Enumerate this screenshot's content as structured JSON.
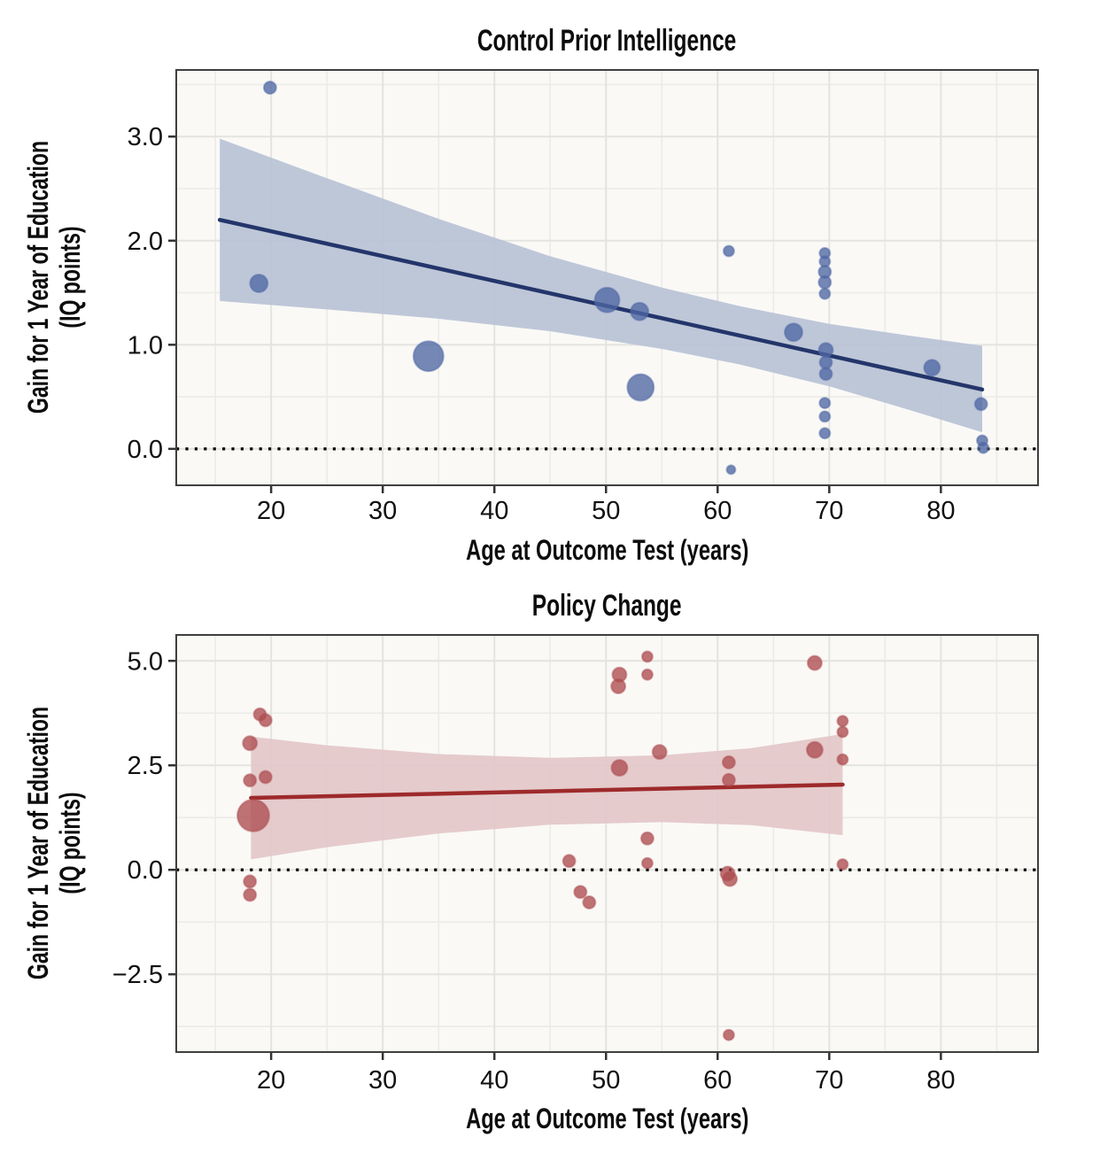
{
  "style": {
    "background": "#ffffff",
    "panel_bg": "#faf9f6",
    "grid_major": "#e3e3e0",
    "grid_minor": "#ebebe8",
    "panel_border": "#3f3f3f",
    "tick_mark": "#333333",
    "tick_text": "#111111",
    "zero_line": "#000000"
  },
  "chart_data": [
    {
      "type": "scatter",
      "title": "Control Prior Intelligence",
      "xlabel": "Age at Outcome Test (years)",
      "ylabel_line1": "Gain for 1 Year of Education",
      "ylabel_line2": "(IQ points)",
      "xlim": [
        11.5,
        88.7
      ],
      "ylim": [
        -0.35,
        3.64
      ],
      "x_tick_values": [
        20,
        30,
        40,
        50,
        60,
        70,
        80
      ],
      "x_tick_labels": [
        "20",
        "30",
        "40",
        "50",
        "60",
        "70",
        "80"
      ],
      "x_minor_ticks": [
        15,
        25,
        35,
        45,
        55,
        65,
        75,
        85
      ],
      "y_tick_values": [
        0,
        1,
        2,
        3
      ],
      "y_tick_labels": [
        "0.0",
        "1.0",
        "2.0",
        "3.0"
      ],
      "y_minor_ticks": [
        0.5,
        1.5,
        2.5,
        3.5
      ],
      "zero_line_y": 0,
      "colors": {
        "point": "#4e66a3",
        "line": "#24356b",
        "ribbon": "#b9c3d5"
      },
      "regression": {
        "x": [
          15.4,
          83.7
        ],
        "y": [
          2.2,
          0.57
        ]
      },
      "ribbon": {
        "x": [
          15.4,
          25,
          35,
          45,
          55,
          62,
          70,
          77,
          83.7
        ],
        "upper": [
          2.98,
          2.6,
          2.21,
          1.85,
          1.55,
          1.37,
          1.2,
          1.09,
          0.99
        ],
        "lower": [
          1.42,
          1.34,
          1.25,
          1.13,
          0.96,
          0.81,
          0.6,
          0.38,
          0.16
        ]
      },
      "points": [
        {
          "x": 19.9,
          "y": 3.47,
          "r": 7
        },
        {
          "x": 18.9,
          "y": 1.59,
          "r": 10
        },
        {
          "x": 34.1,
          "y": 0.89,
          "r": 17
        },
        {
          "x": 50.1,
          "y": 1.43,
          "r": 14
        },
        {
          "x": 53.0,
          "y": 1.32,
          "r": 10
        },
        {
          "x": 53.1,
          "y": 0.59,
          "r": 15
        },
        {
          "x": 61.0,
          "y": 1.9,
          "r": 6
        },
        {
          "x": 61.2,
          "y": -0.2,
          "r": 5
        },
        {
          "x": 69.6,
          "y": 1.88,
          "r": 6
        },
        {
          "x": 69.6,
          "y": 1.8,
          "r": 6
        },
        {
          "x": 69.6,
          "y": 1.7,
          "r": 7
        },
        {
          "x": 69.6,
          "y": 1.6,
          "r": 7
        },
        {
          "x": 69.6,
          "y": 1.49,
          "r": 6
        },
        {
          "x": 69.7,
          "y": 0.95,
          "r": 8
        },
        {
          "x": 69.7,
          "y": 0.83,
          "r": 7
        },
        {
          "x": 69.7,
          "y": 0.72,
          "r": 7
        },
        {
          "x": 69.6,
          "y": 0.44,
          "r": 6
        },
        {
          "x": 69.6,
          "y": 0.31,
          "r": 6
        },
        {
          "x": 69.6,
          "y": 0.15,
          "r": 6
        },
        {
          "x": 66.8,
          "y": 1.12,
          "r": 10
        },
        {
          "x": 79.2,
          "y": 0.78,
          "r": 9
        },
        {
          "x": 83.6,
          "y": 0.43,
          "r": 7
        },
        {
          "x": 83.7,
          "y": 0.08,
          "r": 6
        },
        {
          "x": 83.8,
          "y": 0.01,
          "r": 6
        }
      ]
    },
    {
      "type": "scatter",
      "title": "Policy Change",
      "xlabel": "Age at Outcome Test (years)",
      "ylabel_line1": "Gain for 1 Year of Education",
      "ylabel_line2": "(IQ points)",
      "xlim": [
        11.5,
        88.7
      ],
      "ylim": [
        -4.36,
        5.62
      ],
      "x_tick_values": [
        20,
        30,
        40,
        50,
        60,
        70,
        80
      ],
      "x_tick_labels": [
        "20",
        "30",
        "40",
        "50",
        "60",
        "70",
        "80"
      ],
      "x_minor_ticks": [
        15,
        25,
        35,
        45,
        55,
        65,
        75,
        85
      ],
      "y_tick_values": [
        -2.5,
        0,
        2.5,
        5
      ],
      "y_tick_labels": [
        "−2.5",
        "0.0",
        "2.5",
        "5.0"
      ],
      "y_minor_ticks": [
        -3.75,
        -1.25,
        1.25,
        3.75
      ],
      "zero_line_y": 0,
      "colors": {
        "point": "#ad4c50",
        "line": "#9e2a2b",
        "ribbon": "#e3c7c8"
      },
      "regression": {
        "x": [
          18.2,
          71.2
        ],
        "y": [
          1.72,
          2.04
        ]
      },
      "ribbon": {
        "x": [
          18.2,
          25,
          35,
          45,
          55,
          63,
          71.2
        ],
        "upper": [
          3.19,
          2.98,
          2.77,
          2.68,
          2.74,
          2.91,
          3.25
        ],
        "lower": [
          0.25,
          0.54,
          0.87,
          1.08,
          1.14,
          1.07,
          0.83
        ]
      },
      "points": [
        {
          "x": 19.0,
          "y": 3.72,
          "r": 7
        },
        {
          "x": 19.5,
          "y": 3.58,
          "r": 7
        },
        {
          "x": 18.1,
          "y": 3.03,
          "r": 8
        },
        {
          "x": 18.1,
          "y": 2.14,
          "r": 7
        },
        {
          "x": 19.5,
          "y": 2.22,
          "r": 7
        },
        {
          "x": 18.4,
          "y": 1.3,
          "r": 18
        },
        {
          "x": 18.1,
          "y": -0.28,
          "r": 7
        },
        {
          "x": 18.1,
          "y": -0.6,
          "r": 7
        },
        {
          "x": 46.7,
          "y": 0.21,
          "r": 7
        },
        {
          "x": 47.7,
          "y": -0.53,
          "r": 7
        },
        {
          "x": 48.5,
          "y": -0.78,
          "r": 7
        },
        {
          "x": 51.1,
          "y": 4.39,
          "r": 8
        },
        {
          "x": 51.2,
          "y": 4.67,
          "r": 8
        },
        {
          "x": 53.7,
          "y": 5.1,
          "r": 6
        },
        {
          "x": 53.7,
          "y": 4.67,
          "r": 6
        },
        {
          "x": 51.2,
          "y": 2.44,
          "r": 9
        },
        {
          "x": 54.8,
          "y": 2.82,
          "r": 8
        },
        {
          "x": 53.7,
          "y": 0.75,
          "r": 7
        },
        {
          "x": 53.7,
          "y": 0.16,
          "r": 6
        },
        {
          "x": 61.0,
          "y": 2.57,
          "r": 7
        },
        {
          "x": 61.0,
          "y": 2.15,
          "r": 7
        },
        {
          "x": 60.9,
          "y": -0.09,
          "r": 8
        },
        {
          "x": 61.1,
          "y": -0.22,
          "r": 8
        },
        {
          "x": 61.0,
          "y": -3.95,
          "r": 6
        },
        {
          "x": 68.7,
          "y": 4.95,
          "r": 8
        },
        {
          "x": 68.7,
          "y": 2.87,
          "r": 9
        },
        {
          "x": 71.2,
          "y": 3.56,
          "r": 6
        },
        {
          "x": 71.2,
          "y": 3.3,
          "r": 6
        },
        {
          "x": 71.2,
          "y": 2.64,
          "r": 6
        },
        {
          "x": 71.2,
          "y": 0.13,
          "r": 6
        }
      ]
    }
  ]
}
